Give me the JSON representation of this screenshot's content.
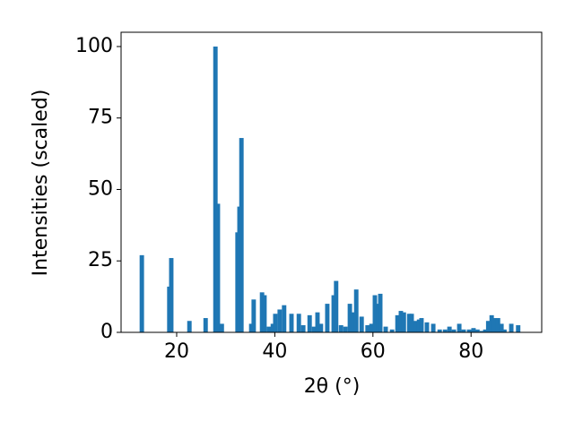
{
  "chart_data": {
    "type": "bar",
    "x_label": "2θ (°)",
    "y_label": "Intensities (scaled)",
    "x": [
      12.9,
      18.5,
      18.9,
      22.6,
      25.9,
      27.9,
      28.4,
      29.2,
      32.4,
      32.8,
      33.2,
      35.2,
      35.7,
      37.4,
      37.9,
      38.8,
      39.6,
      40.1,
      41.0,
      41.9,
      43.4,
      44.9,
      45.8,
      47.1,
      48.0,
      48.7,
      49.4,
      50.7,
      52.0,
      52.5,
      53.5,
      54.4,
      55.3,
      55.8,
      56.6,
      57.7,
      58.9,
      59.7,
      60.4,
      61.1,
      61.5,
      62.6,
      63.9,
      65.0,
      65.7,
      66.3,
      67.4,
      67.9,
      68.7,
      69.4,
      69.9,
      71.0,
      72.3,
      73.6,
      74.7,
      75.6,
      76.5,
      77.6,
      78.5,
      79.6,
      80.5,
      81.3,
      82.2,
      82.9,
      83.5,
      84.2,
      84.7,
      85.5,
      86.2,
      86.8,
      88.2,
      89.6
    ],
    "values": [
      27,
      16,
      26,
      4,
      5,
      100,
      45,
      3,
      35,
      44,
      68,
      3,
      11.5,
      14,
      13,
      2,
      3,
      6.5,
      8,
      9.5,
      6.5,
      6.5,
      2.5,
      6,
      2,
      7,
      3,
      10,
      13,
      18,
      2.5,
      2,
      10,
      7,
      15,
      5.5,
      2.5,
      3,
      13,
      10,
      13.5,
      2,
      1,
      6,
      7.5,
      7,
      6.5,
      6.5,
      4,
      4.5,
      5,
      3.5,
      3,
      1,
      1,
      2,
      1,
      3,
      1,
      1,
      1.5,
      1,
      0.5,
      1,
      4,
      6,
      5,
      5,
      3,
      1,
      3,
      2.5
    ],
    "color": "#1f77b4",
    "xlim": [
      8.67,
      94.4
    ],
    "xticks": [
      20,
      40,
      60,
      80
    ],
    "ylim": [
      0,
      105
    ],
    "yticks": [
      0,
      25,
      50,
      75,
      100
    ],
    "grid": false
  }
}
